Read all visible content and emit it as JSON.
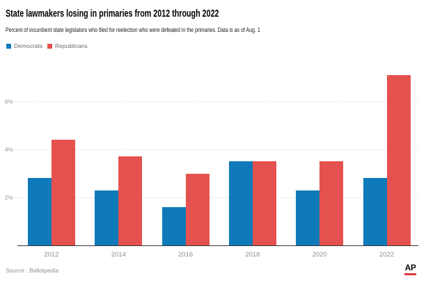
{
  "header": {
    "title": "State lawmakers losing in primaries from 2012 through 2022",
    "subtitle": "Percent of incumbent state legislators who filed for reelection who were defeated in the primaries. Data is as of Aug. 1"
  },
  "legend": [
    {
      "label": "Democrats",
      "color": "#0f7ab9"
    },
    {
      "label": "Republicans",
      "color": "#e5514e"
    }
  ],
  "chart_data": {
    "type": "bar",
    "title": "State lawmakers losing in primaries from 2012 through 2022",
    "subtitle": "Percent of incumbent state legislators who filed for reelection who were defeated in the primaries. Data is as of Aug. 1",
    "categories": [
      "2012",
      "2014",
      "2016",
      "2018",
      "2020",
      "2022"
    ],
    "series": [
      {
        "name": "Democrats",
        "color": "#0f7ab9",
        "values": [
          2.8,
          2.3,
          1.6,
          3.5,
          2.3,
          2.8
        ]
      },
      {
        "name": "Republicans",
        "color": "#e5514e",
        "values": [
          4.4,
          3.7,
          3.0,
          3.5,
          3.5,
          7.1
        ]
      }
    ],
    "unit": "%",
    "yticks": [
      2,
      4,
      6
    ],
    "ytick_labels": [
      "2%",
      "4%",
      "6%"
    ],
    "ylim": [
      0,
      7.4
    ],
    "grid": "horizontal dotted",
    "legend_position": "top-left"
  },
  "footer": {
    "source": "Source : Ballotpedia",
    "logo": "AP"
  },
  "colors": {
    "democrats": "#0f7ab9",
    "republicans": "#e5514e",
    "ap_red": "#e23b3d",
    "axis": "#333333",
    "tick_text": "#9c9c9c"
  }
}
